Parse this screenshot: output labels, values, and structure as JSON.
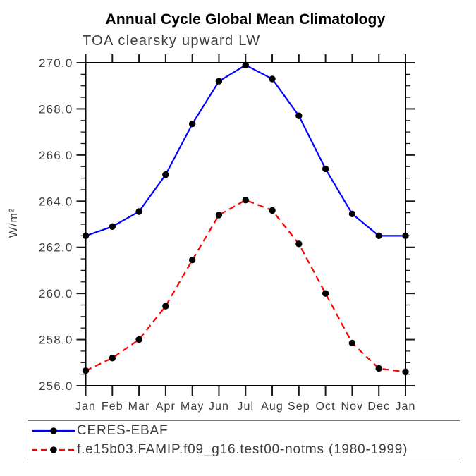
{
  "chart_data": {
    "type": "line",
    "title": "Annual Cycle Global Mean Climatology",
    "subtitle": "TOA clearsky upward LW",
    "ylabel": "W/m²",
    "x_categories": [
      "Jan",
      "Feb",
      "Mar",
      "Apr",
      "May",
      "Jun",
      "Jul",
      "Aug",
      "Sep",
      "Oct",
      "Nov",
      "Dec",
      "Jan"
    ],
    "ylim": [
      256.0,
      270.0
    ],
    "y_major_tick_step": 2.0,
    "y_minor_tick_step": 0.5,
    "y_tick_labels": [
      "256.0",
      "258.0",
      "260.0",
      "262.0",
      "264.0",
      "266.0",
      "268.0",
      "270.0"
    ],
    "grid": false,
    "legend_position": "bottom-left-box",
    "series": [
      {
        "name": "CERES-EBAF",
        "color": "#0000ff",
        "line_style": "solid",
        "marker": "filled-circle",
        "marker_color": "#000000",
        "values": [
          262.5,
          262.9,
          263.55,
          265.15,
          267.35,
          269.2,
          269.9,
          269.3,
          267.7,
          265.4,
          263.45,
          262.5,
          262.5
        ]
      },
      {
        "name": "f.e15b03.FAMIP.f09_g16.test00-notms (1980-1999)",
        "color": "#ff0000",
        "line_style": "dashed",
        "marker": "filled-circle",
        "marker_color": "#000000",
        "values": [
          256.65,
          257.2,
          258.0,
          259.45,
          261.45,
          263.4,
          264.05,
          263.6,
          262.15,
          260.0,
          257.85,
          256.75,
          256.6
        ]
      }
    ],
    "colors": {
      "frame": "#000000",
      "tick": "#1a1a1a",
      "axis_text": "#3d3d3d",
      "title_text": "#000000"
    }
  }
}
